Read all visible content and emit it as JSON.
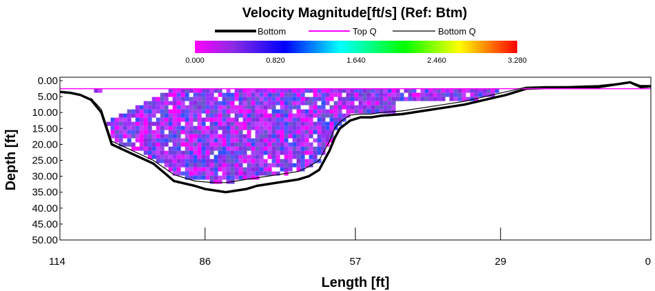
{
  "chart_data": {
    "type": "heatmap",
    "title": "Velocity Magnitude[ft/s] (Ref: Btm)",
    "xlabel": "Length [ft]",
    "ylabel": "Depth [ft]",
    "x_ticks": [
      "114",
      "86",
      "57",
      "29",
      "0"
    ],
    "x_tick_values": [
      114,
      86,
      57,
      29,
      0
    ],
    "xlim": [
      114,
      0
    ],
    "y_ticks": [
      "0.00",
      "5.00",
      "10.00",
      "15.00",
      "20.00",
      "25.00",
      "30.00",
      "35.00",
      "40.00",
      "45.00",
      "50.00"
    ],
    "ylim": [
      0,
      50
    ],
    "legend": [
      "Bottom",
      "Top Q",
      "Bottom Q"
    ],
    "colorbar": {
      "min": 0.0,
      "max": 3.28,
      "ticks": [
        "0.000",
        "0.820",
        "1.640",
        "2.460",
        "3.280"
      ],
      "colors": [
        "#ff00ff",
        "#8a2be2",
        "#0000ff",
        "#00ffff",
        "#00ff00",
        "#ffff00",
        "#ff0000"
      ]
    },
    "series": [
      {
        "name": "Bottom",
        "color": "#000000",
        "x": [
          114,
          112,
          110,
          108,
          106,
          104,
          100,
          96,
          92,
          88,
          86,
          84,
          82,
          80,
          78,
          76,
          74,
          72,
          70,
          68,
          66,
          64,
          62,
          61,
          60,
          58,
          56,
          54,
          52,
          48,
          44,
          40,
          36,
          32,
          28,
          26,
          24,
          20,
          16,
          10,
          6,
          4,
          2,
          0
        ],
        "y": [
          3.5,
          3.8,
          4.5,
          6,
          10,
          20,
          23,
          26,
          31.5,
          33,
          34,
          34.5,
          35,
          34.5,
          34,
          33,
          32.5,
          32,
          31.5,
          31,
          30,
          28,
          22,
          18,
          15,
          12.5,
          11.5,
          11.5,
          11,
          10.5,
          9.5,
          8.5,
          7.5,
          6,
          4.5,
          3.5,
          2.5,
          2.3,
          2.2,
          2,
          1,
          0.5,
          2,
          1.8
        ]
      },
      {
        "name": "Top Q",
        "color": "#ff00ff",
        "x": [
          114,
          0
        ],
        "y": [
          2.5,
          2.5
        ]
      },
      {
        "name": "Bottom Q",
        "color": "#000000",
        "x": [
          108,
          106,
          104,
          100,
          96,
          92,
          88,
          86,
          84,
          82,
          80,
          78,
          76,
          74,
          72,
          70,
          68,
          66,
          64,
          62,
          61,
          60,
          58,
          56,
          54,
          52,
          48,
          44,
          40,
          36,
          32,
          28,
          26,
          24,
          20,
          16,
          10,
          6,
          4,
          2,
          0
        ],
        "y": [
          5.5,
          9,
          19,
          22,
          25,
          29.5,
          31.5,
          31.8,
          32,
          32,
          31.5,
          31,
          30.5,
          30,
          29.5,
          29,
          28.5,
          27,
          25,
          19,
          15,
          13,
          10.8,
          10.5,
          10.5,
          10,
          9.5,
          8.5,
          7.5,
          6.5,
          5,
          3.5,
          2.8,
          2,
          1.8,
          1.8,
          1.5,
          0.8,
          0.3,
          1.5,
          1.5
        ]
      }
    ]
  }
}
